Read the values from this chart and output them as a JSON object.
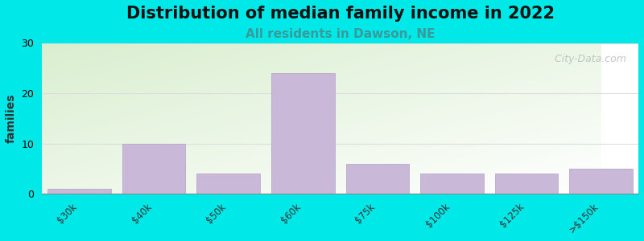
{
  "title": "Distribution of median family income in 2022",
  "subtitle": "All residents in Dawson, NE",
  "ylabel": "families",
  "categories": [
    "$30k",
    "$40k",
    "$50k",
    "$60k",
    "$75k",
    "$100k",
    "$125k",
    ">$150k"
  ],
  "values": [
    1,
    10,
    4,
    24,
    6,
    4,
    4,
    5
  ],
  "bar_color": "#c9b8d8",
  "bar_edge_color": "#b0a0c8",
  "ylim": [
    0,
    30
  ],
  "yticks": [
    0,
    10,
    20,
    30
  ],
  "background_color": "#00e8e8",
  "plot_bg_topleft": "#d8eece",
  "plot_bg_bottomright": "#ffffff",
  "title_fontsize": 15,
  "subtitle_fontsize": 11,
  "subtitle_color": "#3a9a9a",
  "watermark_text": "  City-Data.com",
  "ylabel_fontsize": 10,
  "grid_color": "#dddddd"
}
